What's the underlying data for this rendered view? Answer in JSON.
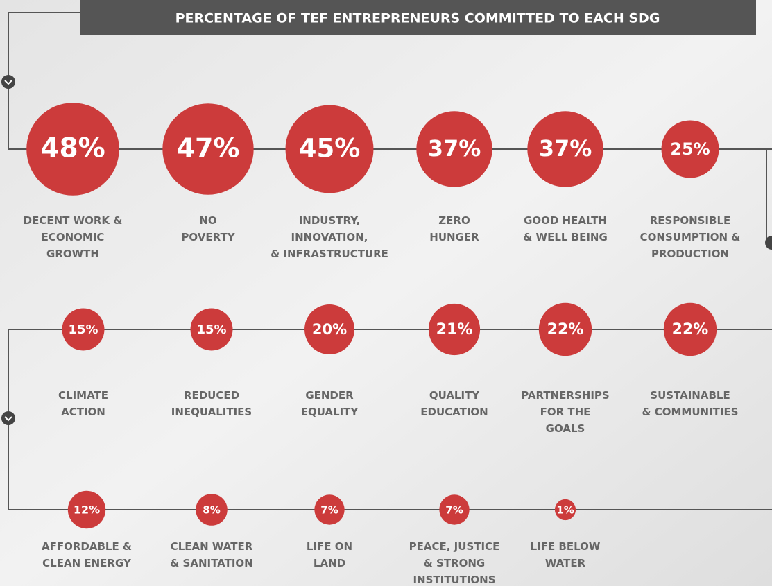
{
  "chart_data": {
    "type": "bubble",
    "title": "PERCENTAGE OF TEF ENTREPRENEURS COMMITTED TO EACH SDG",
    "color": "#cc3b3b",
    "categories": [
      "DECENT WORK &\nECONOMIC\nGROWTH",
      "NO\nPOVERTY",
      "INDUSTRY,\nINNOVATION,\n& INFRASTRUCTURE",
      "ZERO\nHUNGER",
      "GOOD HEALTH\n& WELL BEING",
      "RESPONSIBLE\nCONSUMPTION &\nPRODUCTION",
      "CLIMATE\nACTION",
      "REDUCED\nINEQUALITIES",
      "GENDER\nEQUALITY",
      "QUALITY\nEDUCATION",
      "PARTNERSHIPS\nFOR THE\nGOALS",
      "SUSTAINABLE\n& COMMUNITIES",
      "AFFORDABLE &\nCLEAN ENERGY",
      "CLEAN WATER\n& SANITATION",
      "LIFE ON\nLAND",
      "PEACE, JUSTICE\n& STRONG\nINSTITUTIONS",
      "LIFE BELOW\nWATER"
    ],
    "values": [
      48,
      47,
      45,
      37,
      37,
      25,
      15,
      15,
      20,
      21,
      22,
      22,
      12,
      8,
      7,
      7,
      1
    ],
    "value_labels": [
      "48%",
      "47%",
      "45%",
      "37%",
      "37%",
      "25%",
      "15%",
      "15%",
      "20%",
      "21%",
      "22%",
      "22%",
      "12%",
      "8%",
      "7%",
      "7%",
      "1%"
    ]
  }
}
